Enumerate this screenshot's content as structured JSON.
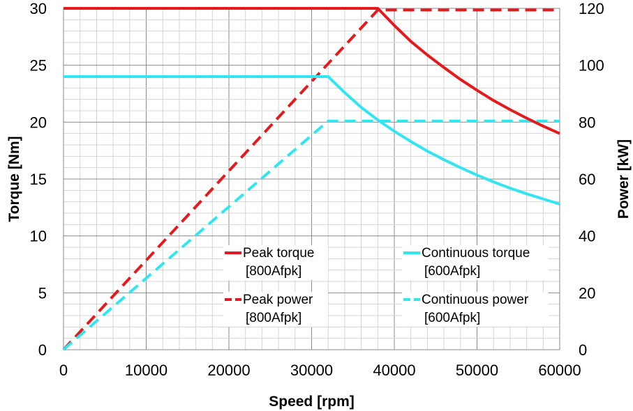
{
  "chart_data": {
    "type": "line",
    "xlabel": "Speed [rpm]",
    "ylabel_left": "Torque [Nm]",
    "ylabel_right": "Power [kW]",
    "xlim": [
      0,
      60000
    ],
    "ylim_left": [
      0,
      30
    ],
    "ylim_right": [
      0,
      120
    ],
    "x_ticks": [
      "0",
      "10000",
      "20000",
      "30000",
      "40000",
      "50000",
      "60000"
    ],
    "y_left_ticks": [
      "0",
      "5",
      "10",
      "15",
      "20",
      "25",
      "30"
    ],
    "y_right_ticks": [
      "0",
      "20",
      "40",
      "60",
      "80",
      "100",
      "120"
    ],
    "grid": true,
    "legend_position": "center-bottom",
    "series": [
      {
        "name": "Peak torque",
        "sub": "[800Afpk]",
        "axis": "left",
        "color": "#e41a1c",
        "style": "solid",
        "x": [
          0,
          38000,
          40000,
          42000,
          44000,
          46000,
          48000,
          50000,
          52000,
          54000,
          56000,
          58000,
          60000
        ],
        "y": [
          30,
          30,
          28.5,
          27.1,
          25.9,
          24.8,
          23.75,
          22.8,
          21.9,
          21.1,
          20.35,
          19.65,
          19.0
        ]
      },
      {
        "name": "Peak  power",
        "sub": "[800Afpk]",
        "axis": "right",
        "color": "#e41a1c",
        "style": "dashed",
        "x": [
          0,
          38000,
          60000
        ],
        "y": [
          0,
          119.4,
          119.4
        ]
      },
      {
        "name": "Continuous torque",
        "sub": "[600Afpk]",
        "axis": "left",
        "color": "#33e5f0",
        "style": "solid",
        "x": [
          0,
          32000,
          34000,
          36000,
          38000,
          40000,
          42000,
          44000,
          46000,
          48000,
          50000,
          52000,
          54000,
          56000,
          58000,
          60000
        ],
        "y": [
          24,
          24,
          22.6,
          21.3,
          20.2,
          19.2,
          18.3,
          17.45,
          16.7,
          16.0,
          15.35,
          14.75,
          14.2,
          13.7,
          13.25,
          12.8
        ]
      },
      {
        "name": "Continuous power",
        "sub": "[600Afpk]",
        "axis": "right",
        "color": "#33e5f0",
        "style": "dashed",
        "x": [
          0,
          32000,
          60000
        ],
        "y": [
          0,
          80.4,
          80.4
        ]
      }
    ]
  }
}
